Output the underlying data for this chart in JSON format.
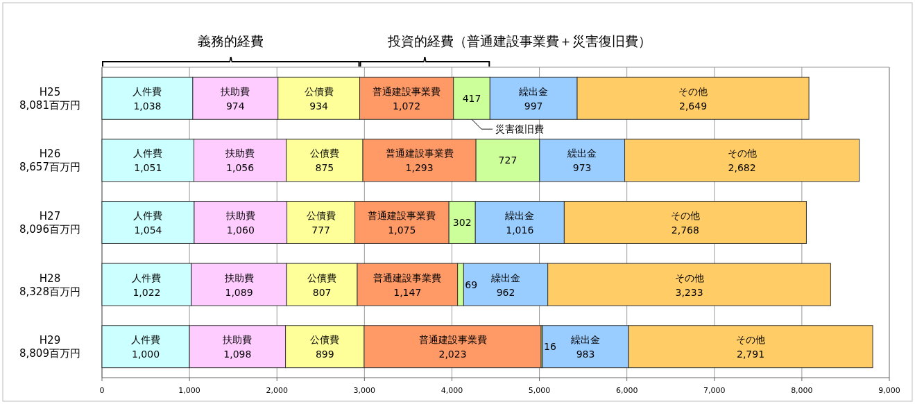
{
  "chart_data": {
    "type": "bar",
    "orientation": "horizontal",
    "stacked": true,
    "legend": false,
    "grid": "x",
    "categories": [
      "H25\n8,081百万円",
      "H26\n8,657百万円",
      "H27\n8,096百万円",
      "H28\n8,328百万円",
      "H29\n8,809百万円"
    ],
    "xlim": [
      0,
      9000
    ],
    "xticks": [
      0,
      {
        "value": 1000,
        "label": "1,000"
      },
      {
        "value": 2000,
        "label": "2,000"
      },
      {
        "value": 3000,
        "label": "3,000"
      },
      {
        "value": 4000,
        "label": "4,000"
      },
      {
        "value": 5000,
        "label": "5,000"
      },
      {
        "value": 6000,
        "label": "6,000"
      },
      {
        "value": 7000,
        "label": "7,000"
      },
      {
        "value": 8000,
        "label": "8,000"
      },
      {
        "value": 9000,
        "label": "9,000"
      }
    ],
    "series": [
      {
        "name": "人件費",
        "color": "#ccffff",
        "values": [
          1038,
          1051,
          1054,
          1022,
          1000
        ],
        "value_labels": [
          "1,038",
          "1,051",
          "1,054",
          "1,022",
          "1,000"
        ]
      },
      {
        "name": "扶助費",
        "color": "#ffccff",
        "values": [
          974,
          1056,
          1060,
          1089,
          1098
        ],
        "value_labels": [
          "974",
          "1,056",
          "1,060",
          "1,089",
          "1,098"
        ]
      },
      {
        "name": "公債費",
        "color": "#ffff99",
        "values": [
          934,
          875,
          777,
          807,
          899
        ],
        "value_labels": [
          "934",
          "875",
          "777",
          "807",
          "899"
        ]
      },
      {
        "name": "普通建設事業費",
        "color": "#ff9966",
        "values": [
          1072,
          1293,
          1075,
          1147,
          2023
        ],
        "value_labels": [
          "1,072",
          "1,293",
          "1,075",
          "1,147",
          "2,023"
        ]
      },
      {
        "color": "#ccff99",
        "values": [
          417,
          727,
          302,
          69,
          16
        ],
        "value_labels": [
          "417",
          "727",
          "302",
          "69",
          "16"
        ]
      },
      {
        "name": "繰出金",
        "color": "#99ccff",
        "values": [
          997,
          973,
          1016,
          962,
          983
        ],
        "value_labels": [
          "997",
          "973",
          "1,016",
          "962",
          "983"
        ]
      },
      {
        "name": "その他",
        "color": "#ffcc66",
        "values": [
          2649,
          2682,
          2768,
          3233,
          2791
        ],
        "value_labels": [
          "2,649",
          "2,682",
          "2,768",
          "3,233",
          "2,791"
        ]
      }
    ],
    "annotations": [
      "義務的経費",
      "投資的経費（普通建設事業費＋災害復旧費）",
      "災害復旧費"
    ]
  }
}
